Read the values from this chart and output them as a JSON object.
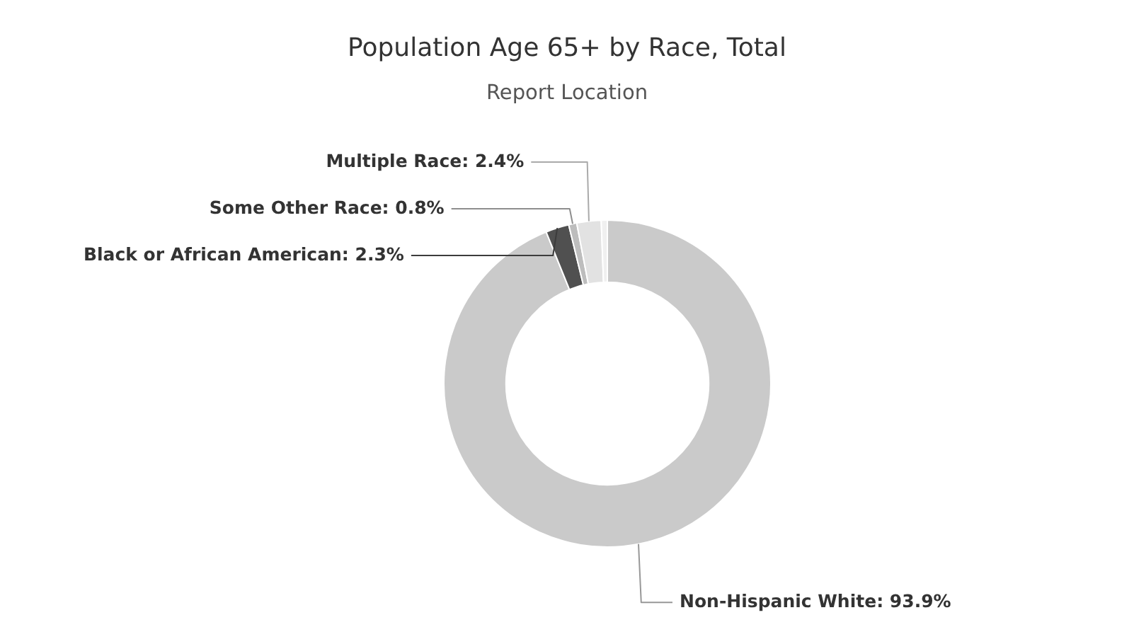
{
  "chart_data": {
    "type": "donut",
    "title": "Population Age 65+ by Race, Total",
    "subtitle": "Report Location",
    "categories": [
      "Non-Hispanic White",
      "Black or African American",
      "Some Other Race",
      "Multiple Race",
      null
    ],
    "values": [
      93.9,
      2.3,
      0.8,
      2.4,
      0.6
    ],
    "colors": [
      "#cacaca",
      "#505050",
      "#bdbdbd",
      "#e2e2e2",
      "#f0f0f0"
    ],
    "value_labels": [
      "93.9%",
      "2.3%",
      "0.8%",
      "2.4%",
      null
    ]
  }
}
